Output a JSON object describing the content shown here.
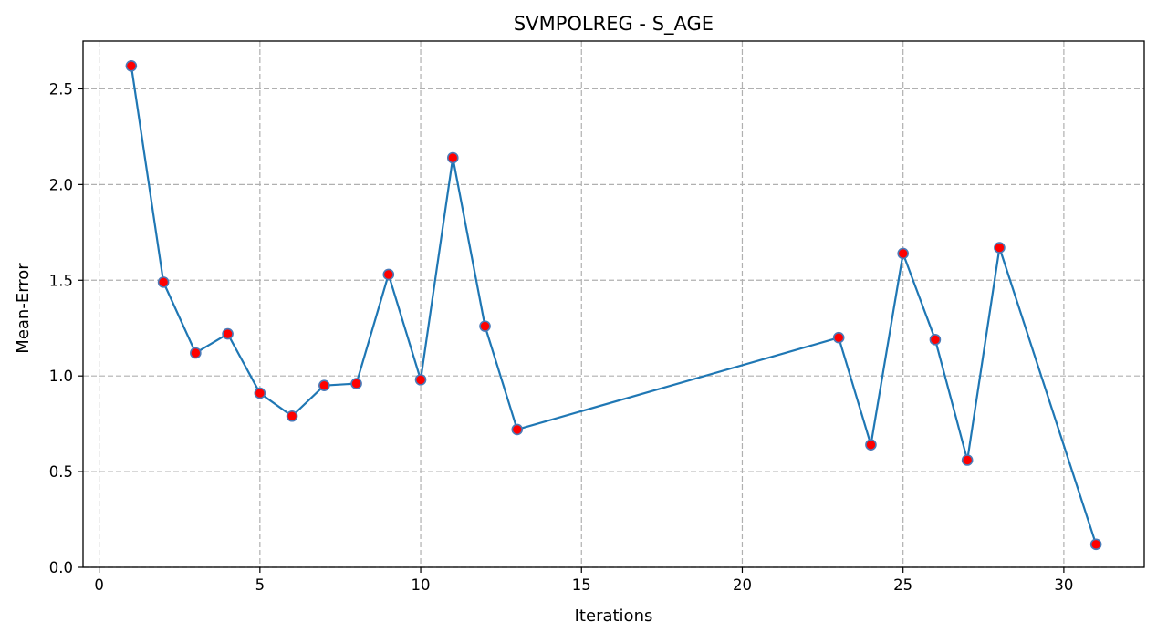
{
  "chart_data": {
    "type": "line",
    "title": "SVMPOLREG - S_AGE",
    "xlabel": "Iterations",
    "ylabel": "Mean-Error",
    "xlim": [
      -0.5,
      32.5
    ],
    "ylim": [
      0.0,
      2.75
    ],
    "xticks": [
      0,
      5,
      10,
      15,
      20,
      25,
      30
    ],
    "yticks": [
      0.0,
      0.5,
      1.0,
      1.5,
      2.0,
      2.5
    ],
    "xtick_labels": [
      "0",
      "5",
      "10",
      "15",
      "20",
      "25",
      "30"
    ],
    "ytick_labels": [
      "0.0",
      "0.5",
      "1.0",
      "1.5",
      "2.0",
      "2.5"
    ],
    "grid": true,
    "series": [
      {
        "x": [
          1,
          2,
          3,
          4,
          5,
          6,
          7,
          8,
          9,
          10,
          11,
          12,
          13,
          23,
          24,
          25,
          26,
          27,
          28,
          31
        ],
        "values": [
          2.62,
          1.49,
          1.12,
          1.22,
          0.91,
          0.79,
          0.95,
          0.96,
          1.53,
          0.98,
          2.14,
          1.26,
          0.72,
          1.2,
          0.64,
          1.64,
          1.19,
          0.56,
          1.67,
          0.12
        ],
        "line_color": "#1f77b4",
        "marker_fill": "#ff0000",
        "marker_edge": "#4a7ab8"
      }
    ]
  }
}
